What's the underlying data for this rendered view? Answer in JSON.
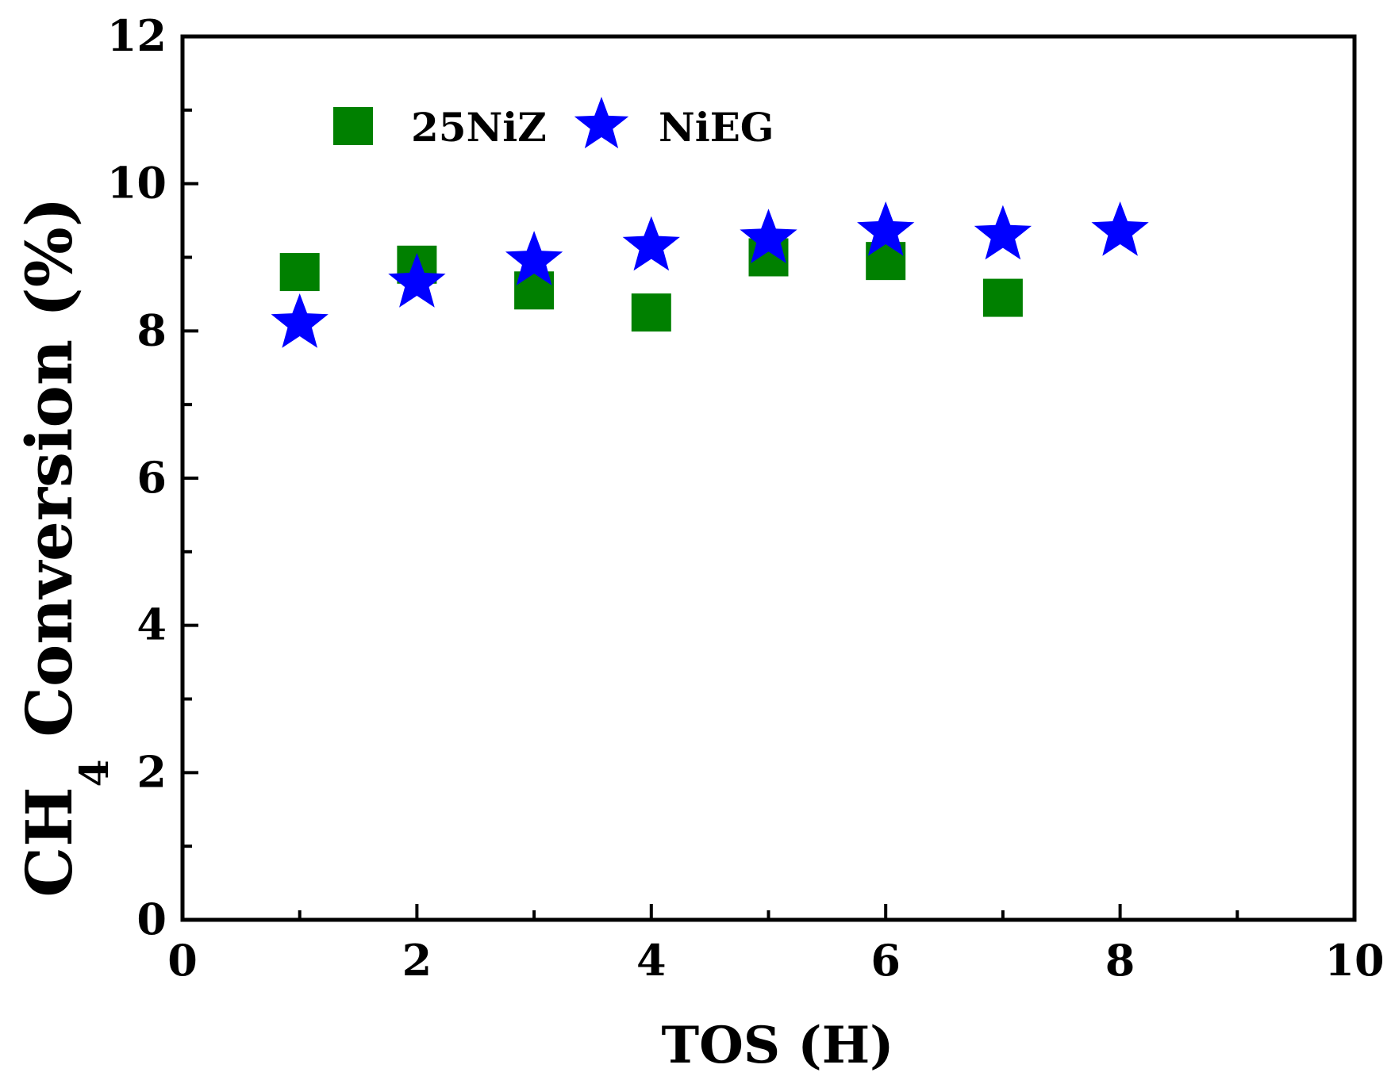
{
  "chart_data": {
    "type": "scatter",
    "title": "",
    "xlabel": "TOS (H)",
    "ylabel": {
      "prefix": "CH",
      "subscript": "4",
      "suffix": " Conversion (%)"
    },
    "xlim": [
      0,
      10
    ],
    "ylim": [
      0,
      12
    ],
    "x_ticks": [
      "0",
      "2",
      "4",
      "6",
      "8",
      "10"
    ],
    "y_ticks": [
      "0",
      "2",
      "4",
      "6",
      "8",
      "10",
      "12"
    ],
    "grid": false,
    "legend_position": "top-left",
    "series": [
      {
        "name": "25NiZ",
        "marker": "square",
        "color": "#008000",
        "x": [
          1,
          2,
          3,
          4,
          5,
          6,
          7
        ],
        "y": [
          8.8,
          8.9,
          8.55,
          8.25,
          9.0,
          8.95,
          8.45
        ]
      },
      {
        "name": "NiEG",
        "marker": "star",
        "color": "#0000ff",
        "x": [
          1,
          2,
          3,
          4,
          5,
          6,
          7,
          8
        ],
        "y": [
          8.1,
          8.65,
          8.95,
          9.15,
          9.25,
          9.35,
          9.3,
          9.35
        ]
      }
    ]
  }
}
